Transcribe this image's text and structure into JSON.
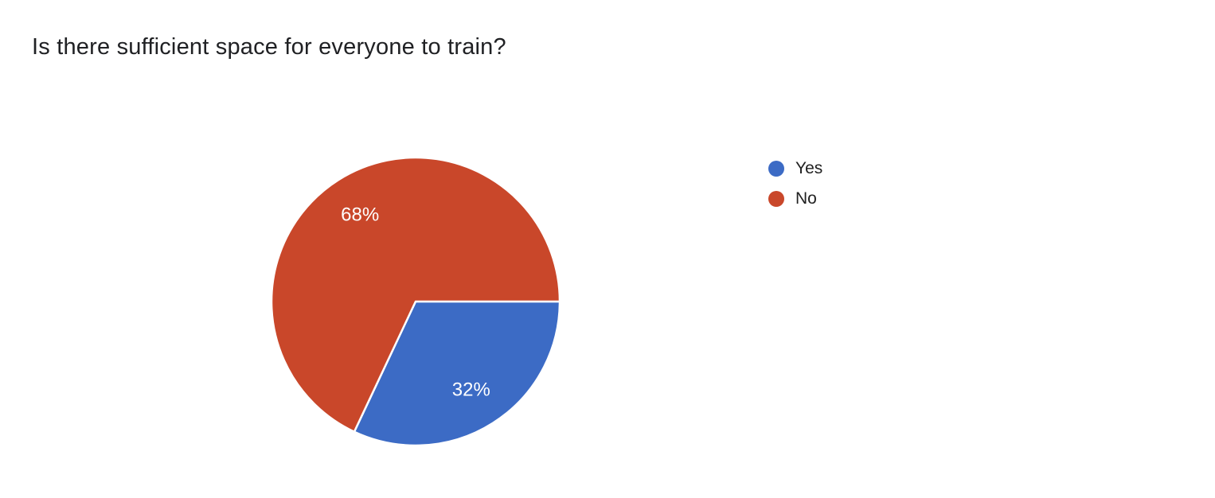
{
  "chart_data": {
    "type": "pie",
    "title": "Is there sufficient space for everyone to train?",
    "labels": [
      "Yes",
      "No"
    ],
    "values": [
      32,
      68
    ],
    "unit": "%",
    "slice_labels": [
      "32%",
      "68%"
    ],
    "colors": [
      "#3C6BC5",
      "#C9472A"
    ],
    "slice_label_color": "#FFFFFF",
    "slice_border_color": "#FFFFFF",
    "background": "#FFFFFF",
    "title_color": "#202124",
    "legend_text_color": "#212121",
    "legend_position": "right",
    "legend_entries": [
      "Yes",
      "No"
    ],
    "start_angle_deg": 0,
    "direction": "clockwise",
    "grid": false
  }
}
